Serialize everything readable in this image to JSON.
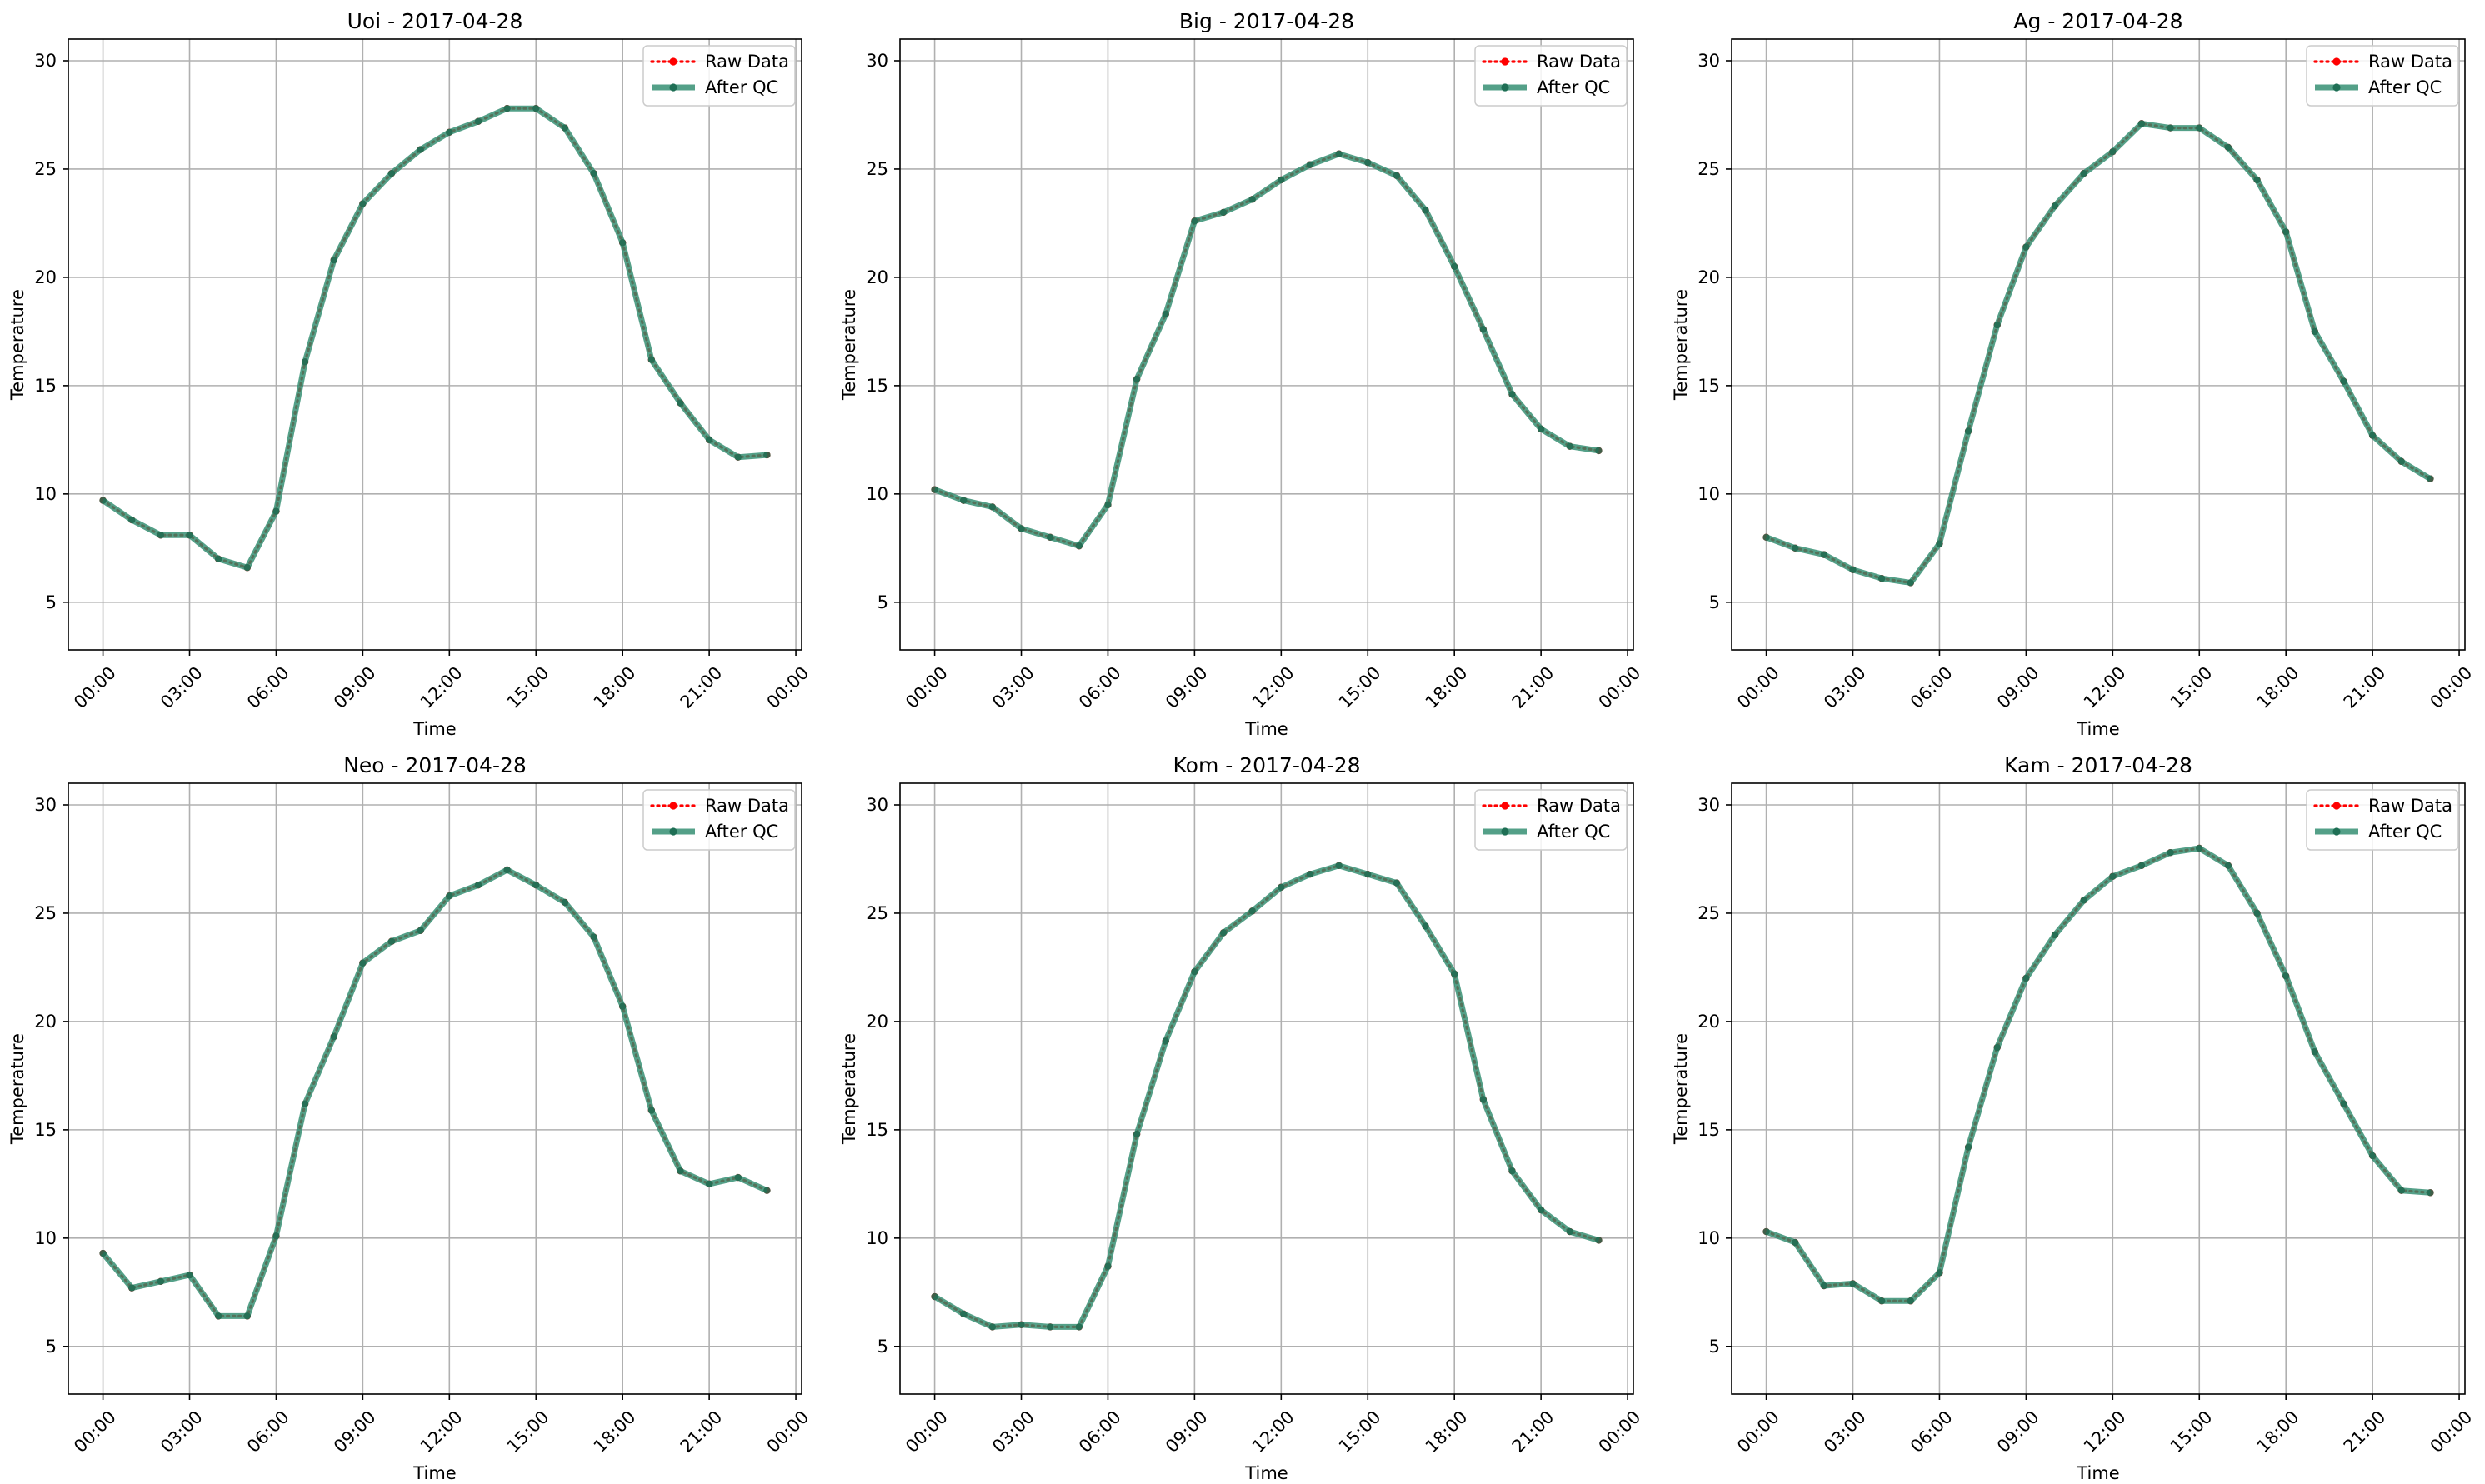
{
  "chart_data": [
    {
      "type": "line",
      "title": "Uoi - 2017-04-28",
      "xlabel": "Time",
      "ylabel": "Temperature",
      "xlim": [
        "2017-04-27 22:48",
        "2017-04-29 00:12"
      ],
      "ylim": [
        2.8,
        31.0
      ],
      "x_ticks": [
        "00:00",
        "03:00",
        "06:00",
        "09:00",
        "12:00",
        "15:00",
        "18:00",
        "21:00",
        "00:00"
      ],
      "y_ticks": [
        "5",
        "10",
        "15",
        "20",
        "25",
        "30"
      ],
      "x": [
        "00:00",
        "01:00",
        "02:00",
        "03:00",
        "04:00",
        "05:00",
        "06:00",
        "07:00",
        "08:00",
        "09:00",
        "10:00",
        "11:00",
        "12:00",
        "13:00",
        "14:00",
        "15:00",
        "16:00",
        "17:00",
        "18:00",
        "19:00",
        "20:00",
        "21:00",
        "22:00",
        "23:00"
      ],
      "grid": true,
      "legend_position": "upper right",
      "series": [
        {
          "name": "Raw Data",
          "color": "#ff0000",
          "values": [
            9.7,
            8.8,
            8.1,
            8.1,
            7.0,
            6.6,
            9.2,
            16.1,
            20.8,
            23.4,
            24.8,
            25.9,
            26.7,
            27.2,
            27.8,
            27.8,
            26.9,
            24.8,
            21.6,
            16.2,
            14.2,
            12.5,
            11.7,
            11.8
          ]
        },
        {
          "name": "After QC",
          "color": "#2e8b6e",
          "values": [
            9.7,
            8.8,
            8.1,
            8.1,
            7.0,
            6.6,
            9.2,
            16.1,
            20.8,
            23.4,
            24.8,
            25.9,
            26.7,
            27.2,
            27.8,
            27.8,
            26.9,
            24.8,
            21.6,
            16.2,
            14.2,
            12.5,
            11.7,
            11.8
          ]
        }
      ]
    },
    {
      "type": "line",
      "title": "Big - 2017-04-28",
      "xlabel": "Time",
      "ylabel": "Temperature",
      "xlim": [
        "2017-04-27 22:48",
        "2017-04-29 00:12"
      ],
      "ylim": [
        2.8,
        31.0
      ],
      "x_ticks": [
        "00:00",
        "03:00",
        "06:00",
        "09:00",
        "12:00",
        "15:00",
        "18:00",
        "21:00",
        "00:00"
      ],
      "y_ticks": [
        "5",
        "10",
        "15",
        "20",
        "25",
        "30"
      ],
      "x": [
        "00:00",
        "01:00",
        "02:00",
        "03:00",
        "04:00",
        "05:00",
        "06:00",
        "07:00",
        "08:00",
        "09:00",
        "10:00",
        "11:00",
        "12:00",
        "13:00",
        "14:00",
        "15:00",
        "16:00",
        "17:00",
        "18:00",
        "19:00",
        "20:00",
        "21:00",
        "22:00",
        "23:00"
      ],
      "grid": true,
      "legend_position": "upper right",
      "series": [
        {
          "name": "Raw Data",
          "color": "#ff0000",
          "values": [
            10.2,
            9.7,
            9.4,
            8.4,
            8.0,
            7.6,
            9.5,
            15.3,
            18.3,
            22.6,
            23.0,
            23.6,
            24.5,
            25.2,
            25.7,
            25.3,
            24.7,
            23.1,
            20.5,
            17.6,
            14.6,
            13.0,
            12.2,
            12.0
          ]
        },
        {
          "name": "After QC",
          "color": "#2e8b6e",
          "values": [
            10.2,
            9.7,
            9.4,
            8.4,
            8.0,
            7.6,
            9.5,
            15.3,
            18.3,
            22.6,
            23.0,
            23.6,
            24.5,
            25.2,
            25.7,
            25.3,
            24.7,
            23.1,
            20.5,
            17.6,
            14.6,
            13.0,
            12.2,
            12.0
          ]
        }
      ]
    },
    {
      "type": "line",
      "title": "Ag - 2017-04-28",
      "xlabel": "Time",
      "ylabel": "Temperature",
      "xlim": [
        "2017-04-27 22:48",
        "2017-04-29 00:12"
      ],
      "ylim": [
        2.8,
        31.0
      ],
      "x_ticks": [
        "00:00",
        "03:00",
        "06:00",
        "09:00",
        "12:00",
        "15:00",
        "18:00",
        "21:00",
        "00:00"
      ],
      "y_ticks": [
        "5",
        "10",
        "15",
        "20",
        "25",
        "30"
      ],
      "x": [
        "00:00",
        "01:00",
        "02:00",
        "03:00",
        "04:00",
        "05:00",
        "06:00",
        "07:00",
        "08:00",
        "09:00",
        "10:00",
        "11:00",
        "12:00",
        "13:00",
        "14:00",
        "15:00",
        "16:00",
        "17:00",
        "18:00",
        "19:00",
        "20:00",
        "21:00",
        "22:00",
        "23:00"
      ],
      "grid": true,
      "legend_position": "upper right",
      "series": [
        {
          "name": "Raw Data",
          "color": "#ff0000",
          "values": [
            8.0,
            7.5,
            7.2,
            6.5,
            6.1,
            5.9,
            7.7,
            12.9,
            17.8,
            21.4,
            23.3,
            24.8,
            25.8,
            27.1,
            26.9,
            26.9,
            26.0,
            24.5,
            22.1,
            17.5,
            15.2,
            12.7,
            11.5,
            10.7
          ]
        },
        {
          "name": "After QC",
          "color": "#2e8b6e",
          "values": [
            8.0,
            7.5,
            7.2,
            6.5,
            6.1,
            5.9,
            7.7,
            12.9,
            17.8,
            21.4,
            23.3,
            24.8,
            25.8,
            27.1,
            26.9,
            26.9,
            26.0,
            24.5,
            22.1,
            17.5,
            15.2,
            12.7,
            11.5,
            10.7
          ]
        }
      ]
    },
    {
      "type": "line",
      "title": "Neo - 2017-04-28",
      "xlabel": "Time",
      "ylabel": "Temperature",
      "xlim": [
        "2017-04-27 22:48",
        "2017-04-29 00:12"
      ],
      "ylim": [
        2.8,
        31.0
      ],
      "x_ticks": [
        "00:00",
        "03:00",
        "06:00",
        "09:00",
        "12:00",
        "15:00",
        "18:00",
        "21:00",
        "00:00"
      ],
      "y_ticks": [
        "5",
        "10",
        "15",
        "20",
        "25",
        "30"
      ],
      "x": [
        "00:00",
        "01:00",
        "02:00",
        "03:00",
        "04:00",
        "05:00",
        "06:00",
        "07:00",
        "08:00",
        "09:00",
        "10:00",
        "11:00",
        "12:00",
        "13:00",
        "14:00",
        "15:00",
        "16:00",
        "17:00",
        "18:00",
        "19:00",
        "20:00",
        "21:00",
        "22:00",
        "23:00"
      ],
      "grid": true,
      "legend_position": "upper right",
      "series": [
        {
          "name": "Raw Data",
          "color": "#ff0000",
          "values": [
            9.3,
            7.7,
            8.0,
            8.3,
            6.4,
            6.4,
            10.1,
            16.2,
            19.3,
            22.7,
            23.7,
            24.2,
            25.8,
            26.3,
            27.0,
            26.3,
            25.5,
            23.9,
            20.7,
            15.9,
            13.1,
            12.5,
            12.8,
            12.2
          ]
        },
        {
          "name": "After QC",
          "color": "#2e8b6e",
          "values": [
            9.3,
            7.7,
            8.0,
            8.3,
            6.4,
            6.4,
            10.1,
            16.2,
            19.3,
            22.7,
            23.7,
            24.2,
            25.8,
            26.3,
            27.0,
            26.3,
            25.5,
            23.9,
            20.7,
            15.9,
            13.1,
            12.5,
            12.8,
            12.2
          ]
        }
      ]
    },
    {
      "type": "line",
      "title": "Kom - 2017-04-28",
      "xlabel": "Time",
      "ylabel": "Temperature",
      "xlim": [
        "2017-04-27 22:48",
        "2017-04-29 00:12"
      ],
      "ylim": [
        2.8,
        31.0
      ],
      "x_ticks": [
        "00:00",
        "03:00",
        "06:00",
        "09:00",
        "12:00",
        "15:00",
        "18:00",
        "21:00",
        "00:00"
      ],
      "y_ticks": [
        "5",
        "10",
        "15",
        "20",
        "25",
        "30"
      ],
      "x": [
        "00:00",
        "01:00",
        "02:00",
        "03:00",
        "04:00",
        "05:00",
        "06:00",
        "07:00",
        "08:00",
        "09:00",
        "10:00",
        "11:00",
        "12:00",
        "13:00",
        "14:00",
        "15:00",
        "16:00",
        "17:00",
        "18:00",
        "19:00",
        "20:00",
        "21:00",
        "22:00",
        "23:00"
      ],
      "grid": true,
      "legend_position": "upper right",
      "series": [
        {
          "name": "Raw Data",
          "color": "#ff0000",
          "values": [
            7.3,
            6.5,
            5.9,
            6.0,
            5.9,
            5.9,
            8.7,
            14.8,
            19.1,
            22.3,
            24.1,
            25.1,
            26.2,
            26.8,
            27.2,
            26.8,
            26.4,
            24.4,
            22.2,
            16.4,
            13.1,
            11.3,
            10.3,
            9.9
          ]
        },
        {
          "name": "After QC",
          "color": "#2e8b6e",
          "values": [
            7.3,
            6.5,
            5.9,
            6.0,
            5.9,
            5.9,
            8.7,
            14.8,
            19.1,
            22.3,
            24.1,
            25.1,
            26.2,
            26.8,
            27.2,
            26.8,
            26.4,
            24.4,
            22.2,
            16.4,
            13.1,
            11.3,
            10.3,
            9.9
          ]
        }
      ]
    },
    {
      "type": "line",
      "title": "Kam - 2017-04-28",
      "xlabel": "Time",
      "ylabel": "Temperature",
      "xlim": [
        "2017-04-27 22:48",
        "2017-04-29 00:12"
      ],
      "ylim": [
        2.8,
        31.0
      ],
      "x_ticks": [
        "00:00",
        "03:00",
        "06:00",
        "09:00",
        "12:00",
        "15:00",
        "18:00",
        "21:00",
        "00:00"
      ],
      "y_ticks": [
        "5",
        "10",
        "15",
        "20",
        "25",
        "30"
      ],
      "x": [
        "00:00",
        "01:00",
        "02:00",
        "03:00",
        "04:00",
        "05:00",
        "06:00",
        "07:00",
        "08:00",
        "09:00",
        "10:00",
        "11:00",
        "12:00",
        "13:00",
        "14:00",
        "15:00",
        "16:00",
        "17:00",
        "18:00",
        "19:00",
        "20:00",
        "21:00",
        "22:00",
        "23:00"
      ],
      "grid": true,
      "legend_position": "upper right",
      "series": [
        {
          "name": "Raw Data",
          "color": "#ff0000",
          "values": [
            10.3,
            9.8,
            7.8,
            7.9,
            7.1,
            7.1,
            8.4,
            14.2,
            18.8,
            22.0,
            24.0,
            25.6,
            26.7,
            27.2,
            27.8,
            28.0,
            27.2,
            25.0,
            22.1,
            18.6,
            16.2,
            13.8,
            12.2,
            12.1
          ]
        },
        {
          "name": "After QC",
          "color": "#2e8b6e",
          "values": [
            10.3,
            9.8,
            7.8,
            7.9,
            7.1,
            7.1,
            8.4,
            14.2,
            18.8,
            22.0,
            24.0,
            25.6,
            26.7,
            27.2,
            27.8,
            28.0,
            27.2,
            25.0,
            22.1,
            18.6,
            16.2,
            13.8,
            12.2,
            12.1
          ]
        }
      ]
    }
  ]
}
